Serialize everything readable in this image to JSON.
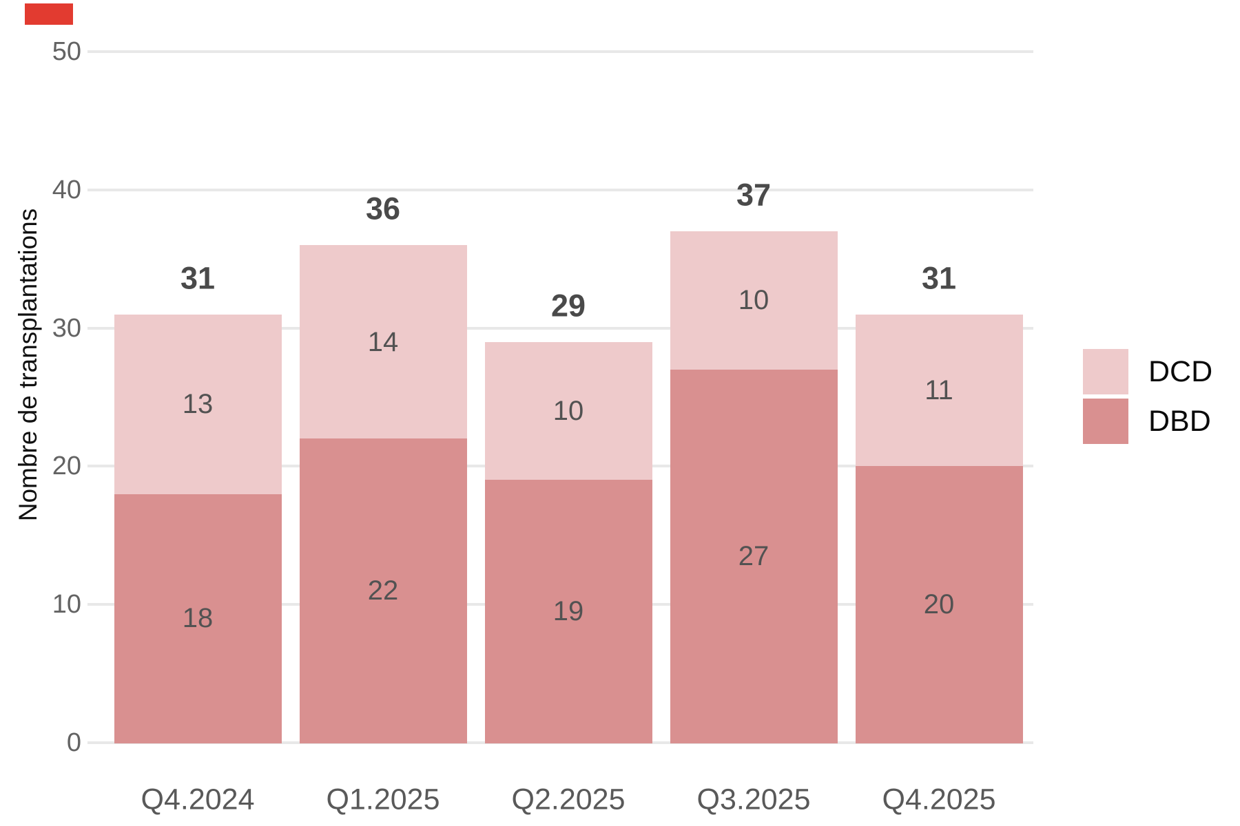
{
  "decorations": {
    "red_box_color": "#e23b30"
  },
  "colors": {
    "background": "#ffffff",
    "gridline": "#e8e8e8",
    "tick_label": "#636363",
    "x_label": "#595959",
    "total_label": "#4a4a4a",
    "segment_label": "#525252",
    "axis_title": "#111111",
    "dcd": "#eecacb",
    "dbd": "#d99090"
  },
  "legend": {
    "position": "right",
    "items": [
      {
        "label": "DCD",
        "color": "#eecacb"
      },
      {
        "label": "DBD",
        "color": "#d99090"
      }
    ]
  },
  "chart_data": {
    "type": "bar",
    "stacked": true,
    "title": "",
    "xlabel": "",
    "ylabel": "Nombre de transplantations",
    "ylim": [
      0,
      50
    ],
    "y_ticks": [
      0,
      10,
      20,
      30,
      40,
      50
    ],
    "grid": "horizontal",
    "legend_position": "right",
    "categories": [
      "Q4.2024",
      "Q1.2025",
      "Q2.2025",
      "Q3.2025",
      "Q4.2025"
    ],
    "series": [
      {
        "name": "DBD",
        "color": "#d99090",
        "values": [
          18,
          22,
          19,
          27,
          20
        ]
      },
      {
        "name": "DCD",
        "color": "#eecacb",
        "values": [
          13,
          14,
          10,
          10,
          11
        ]
      }
    ],
    "totals": [
      31,
      36,
      29,
      37,
      31
    ]
  }
}
